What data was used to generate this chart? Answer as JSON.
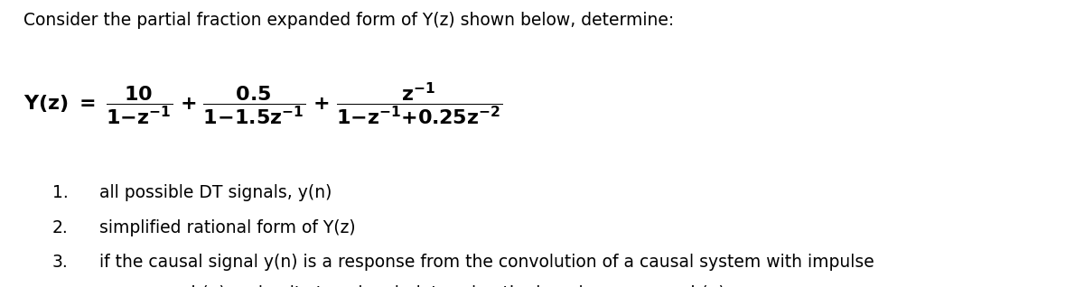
{
  "bg_color": "#ffffff",
  "title": "Consider the partial fraction expanded form of Y(z) shown below, determine:",
  "title_fs": 13.5,
  "formula_fs": 16,
  "item_fs": 13.5,
  "items": [
    {
      "num": "1.",
      "text": "all possible DT signals, y(n)"
    },
    {
      "num": "2.",
      "text": "simplified rational form of Y(z)"
    },
    {
      "num": "3.",
      "text": "if the causal signal y(n) is a response from the convolution of a causal system with impulse"
    },
    {
      "num": "",
      "text": "response h(n) and unit-step signal, determine the impulse response h(n)"
    }
  ]
}
